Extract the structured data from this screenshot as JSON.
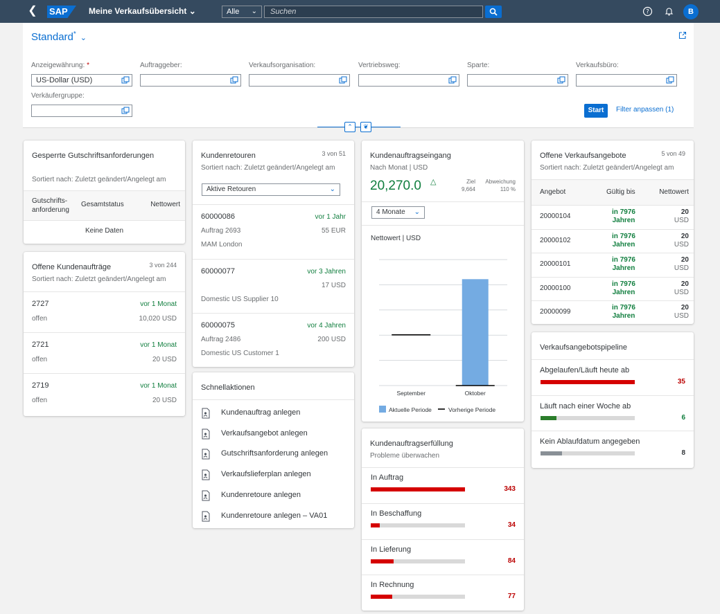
{
  "shell": {
    "logo": "SAP",
    "title": "Meine Verkaufsübersicht",
    "scope": "Alle",
    "search_placeholder": "Suchen",
    "avatar": "B"
  },
  "header": {
    "variant": "Standard",
    "variant_marker": "*",
    "fields": [
      {
        "label": "Anzeigewährung:",
        "required": "*",
        "value": "US-Dollar (USD)"
      },
      {
        "label": "Auftraggeber:",
        "value": ""
      },
      {
        "label": "Verkaufsorganisation:",
        "value": ""
      },
      {
        "label": "Vertriebsweg:",
        "value": ""
      },
      {
        "label": "Sparte:",
        "value": ""
      },
      {
        "label": "Verkaufsbüro:",
        "value": ""
      },
      {
        "label": "Verkäufergruppe:",
        "value": ""
      }
    ],
    "start_label": "Start",
    "adapt_filters_label": "Filter anpassen (1)"
  },
  "blocked": {
    "title": "Gesperrte Gutschriftsanforderungen",
    "sort": "Sortiert nach: Zuletzt geändert/Angelegt am",
    "cols": [
      "Gutschrifts-\nanforderung",
      "Gesamtstatus",
      "Nettowert"
    ],
    "empty": "Keine Daten"
  },
  "open_orders": {
    "title": "Offene Kundenaufträge",
    "counter": "3 von 244",
    "sort": "Sortiert nach: Zuletzt geändert/Angelegt am",
    "items": [
      {
        "id": "2727",
        "age": "vor 1 Monat",
        "status": "offen",
        "amount": "10,020 USD"
      },
      {
        "id": "2721",
        "age": "vor 1 Monat",
        "status": "offen",
        "amount": "20 USD"
      },
      {
        "id": "2719",
        "age": "vor 1 Monat",
        "status": "offen",
        "amount": "20 USD"
      }
    ]
  },
  "returns": {
    "title": "Kundenretouren",
    "counter": "3 von 51",
    "sort": "Sortiert nach: Zuletzt geändert/Angelegt am",
    "filter": "Aktive Retouren",
    "items": [
      {
        "id": "60000086",
        "age": "vor 1 Jahr",
        "line2": "Auftrag 2693",
        "amount": "55 EUR",
        "line3": "MAM London"
      },
      {
        "id": "60000077",
        "age": "vor 3 Jahren",
        "line2": "",
        "amount": "17 USD",
        "line3": "Domestic US Supplier 10"
      },
      {
        "id": "60000075",
        "age": "vor 4 Jahren",
        "line2": "Auftrag 2486",
        "amount": "200 USD",
        "line3": "Domestic US Customer 1"
      }
    ]
  },
  "quick_actions": {
    "title": "Schnellaktionen",
    "items": [
      "Kundenauftrag anlegen",
      "Verkaufsangebot anlegen",
      "Gutschriftsanforderung anlegen",
      "Verkaufslieferplan anlegen",
      "Kundenretoure anlegen",
      "Kundenretoure anlegen – VA01"
    ]
  },
  "incoming": {
    "title": "Kundenauftragseingang",
    "sub": "Nach Monat | USD",
    "kpi": "20,270.0",
    "target_label": "Ziel",
    "target_value": "9,664",
    "deviation_label": "Abweichung",
    "deviation_value": "110 %",
    "period_select": "4 Monate",
    "chart_title": "Nettowert | USD"
  },
  "chart_data": {
    "type": "bar",
    "title": "Nettowert | USD",
    "categories": [
      "September",
      "Oktober"
    ],
    "series": [
      {
        "name": "Aktuelle Periode",
        "values": [
          0,
          20270
        ],
        "color": "#74abe2"
      },
      {
        "name": "Vorherige Periode",
        "values": [
          9664,
          0
        ],
        "color": "#000000"
      }
    ],
    "ylim": [
      0,
      24000
    ],
    "grid": true,
    "legend": "bottom"
  },
  "fulfillment": {
    "title": "Kundenauftragserfüllung",
    "sub": "Probleme überwachen",
    "max": 343,
    "items": [
      {
        "label": "In Auftrag",
        "value": 343,
        "display": "343"
      },
      {
        "label": "In Beschaffung",
        "value": 34,
        "display": "34"
      },
      {
        "label": "In Lieferung",
        "value": 84,
        "display": "84"
      },
      {
        "label": "In Rechnung",
        "value": 77,
        "display": "77"
      }
    ]
  },
  "quotes": {
    "title": "Offene Verkaufsangebote",
    "counter": "5 von 49",
    "sort": "Sortiert nach: Zuletzt geändert/Angelegt am",
    "cols": [
      "Angebot",
      "Gültig bis",
      "Nettowert"
    ],
    "rows": [
      {
        "id": "20000104",
        "valid1": "in 7976",
        "valid2": "Jahren",
        "value": "20",
        "unit": "USD"
      },
      {
        "id": "20000102",
        "valid1": "in 7976",
        "valid2": "Jahren",
        "value": "20",
        "unit": "USD"
      },
      {
        "id": "20000101",
        "valid1": "in 7976",
        "valid2": "Jahren",
        "value": "20",
        "unit": "USD"
      },
      {
        "id": "20000100",
        "valid1": "in 7976",
        "valid2": "Jahren",
        "value": "20",
        "unit": "USD"
      },
      {
        "id": "20000099",
        "valid1": "in 7976",
        "valid2": "Jahren",
        "value": "20",
        "unit": "USD"
      }
    ]
  },
  "pipeline": {
    "title": "Verkaufsangebotspipeline",
    "max": 35,
    "items": [
      {
        "label": "Abgelaufen/Läuft heute ab",
        "value": 35,
        "display": "35",
        "color": "#d50000",
        "valueColor": "#bb0000"
      },
      {
        "label": "Läuft nach einer Woche ab",
        "value": 6,
        "display": "6",
        "color": "#2b7d2b",
        "valueColor": "#107e3e"
      },
      {
        "label": "Kein Ablaufdatum angegeben",
        "value": 8,
        "display": "8",
        "color": "#899096",
        "valueColor": "#32363a"
      }
    ]
  }
}
